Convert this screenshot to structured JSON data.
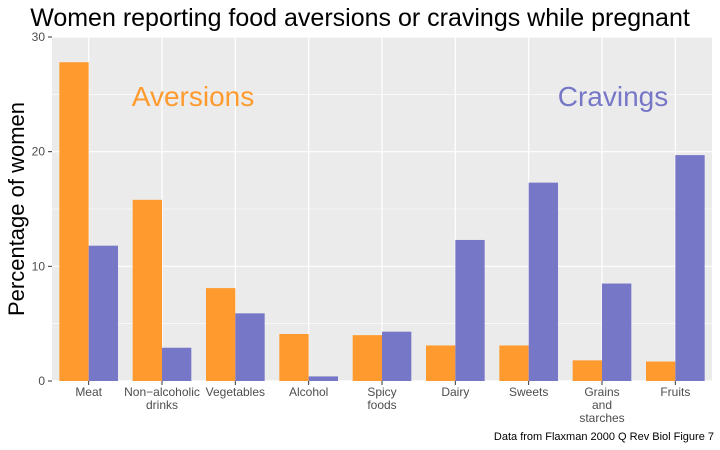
{
  "chart_data": {
    "type": "bar",
    "title": "Women reporting food aversions or cravings while pregnant",
    "xlabel": "",
    "ylabel": "Percentage of women",
    "ylim": [
      0,
      30
    ],
    "yticks": [
      0,
      10,
      20,
      30
    ],
    "categories": [
      "Meat",
      "Non−alcoholic drinks",
      "Vegetables",
      "Alcohol",
      "Spicy foods",
      "Dairy",
      "Sweets",
      "Grains and starches",
      "Fruits"
    ],
    "category_lines": [
      [
        "Meat"
      ],
      [
        "Non−alcoholic",
        "drinks"
      ],
      [
        "Vegetables"
      ],
      [
        "Alcohol"
      ],
      [
        "Spicy",
        "foods"
      ],
      [
        "Dairy"
      ],
      [
        "Sweets"
      ],
      [
        "Grains",
        "and",
        "starches"
      ],
      [
        "Fruits"
      ]
    ],
    "series": [
      {
        "name": "Aversions",
        "color": "#ff9b2e",
        "values": [
          27.8,
          15.8,
          8.1,
          4.1,
          4.0,
          3.1,
          3.1,
          1.8,
          1.7
        ]
      },
      {
        "name": "Cravings",
        "color": "#7777c8",
        "values": [
          11.8,
          2.9,
          5.9,
          0.4,
          4.3,
          12.3,
          17.3,
          8.5,
          19.7
        ]
      }
    ],
    "grid": true,
    "legend": "in-plot labels"
  },
  "annotations": {
    "aversions_label": "Aversions",
    "cravings_label": "Cravings",
    "caption": "Data from Flaxman 2000 Q Rev Biol Figure 7"
  },
  "colors": {
    "panel": "#ebebeb",
    "grid": "#ffffff"
  }
}
